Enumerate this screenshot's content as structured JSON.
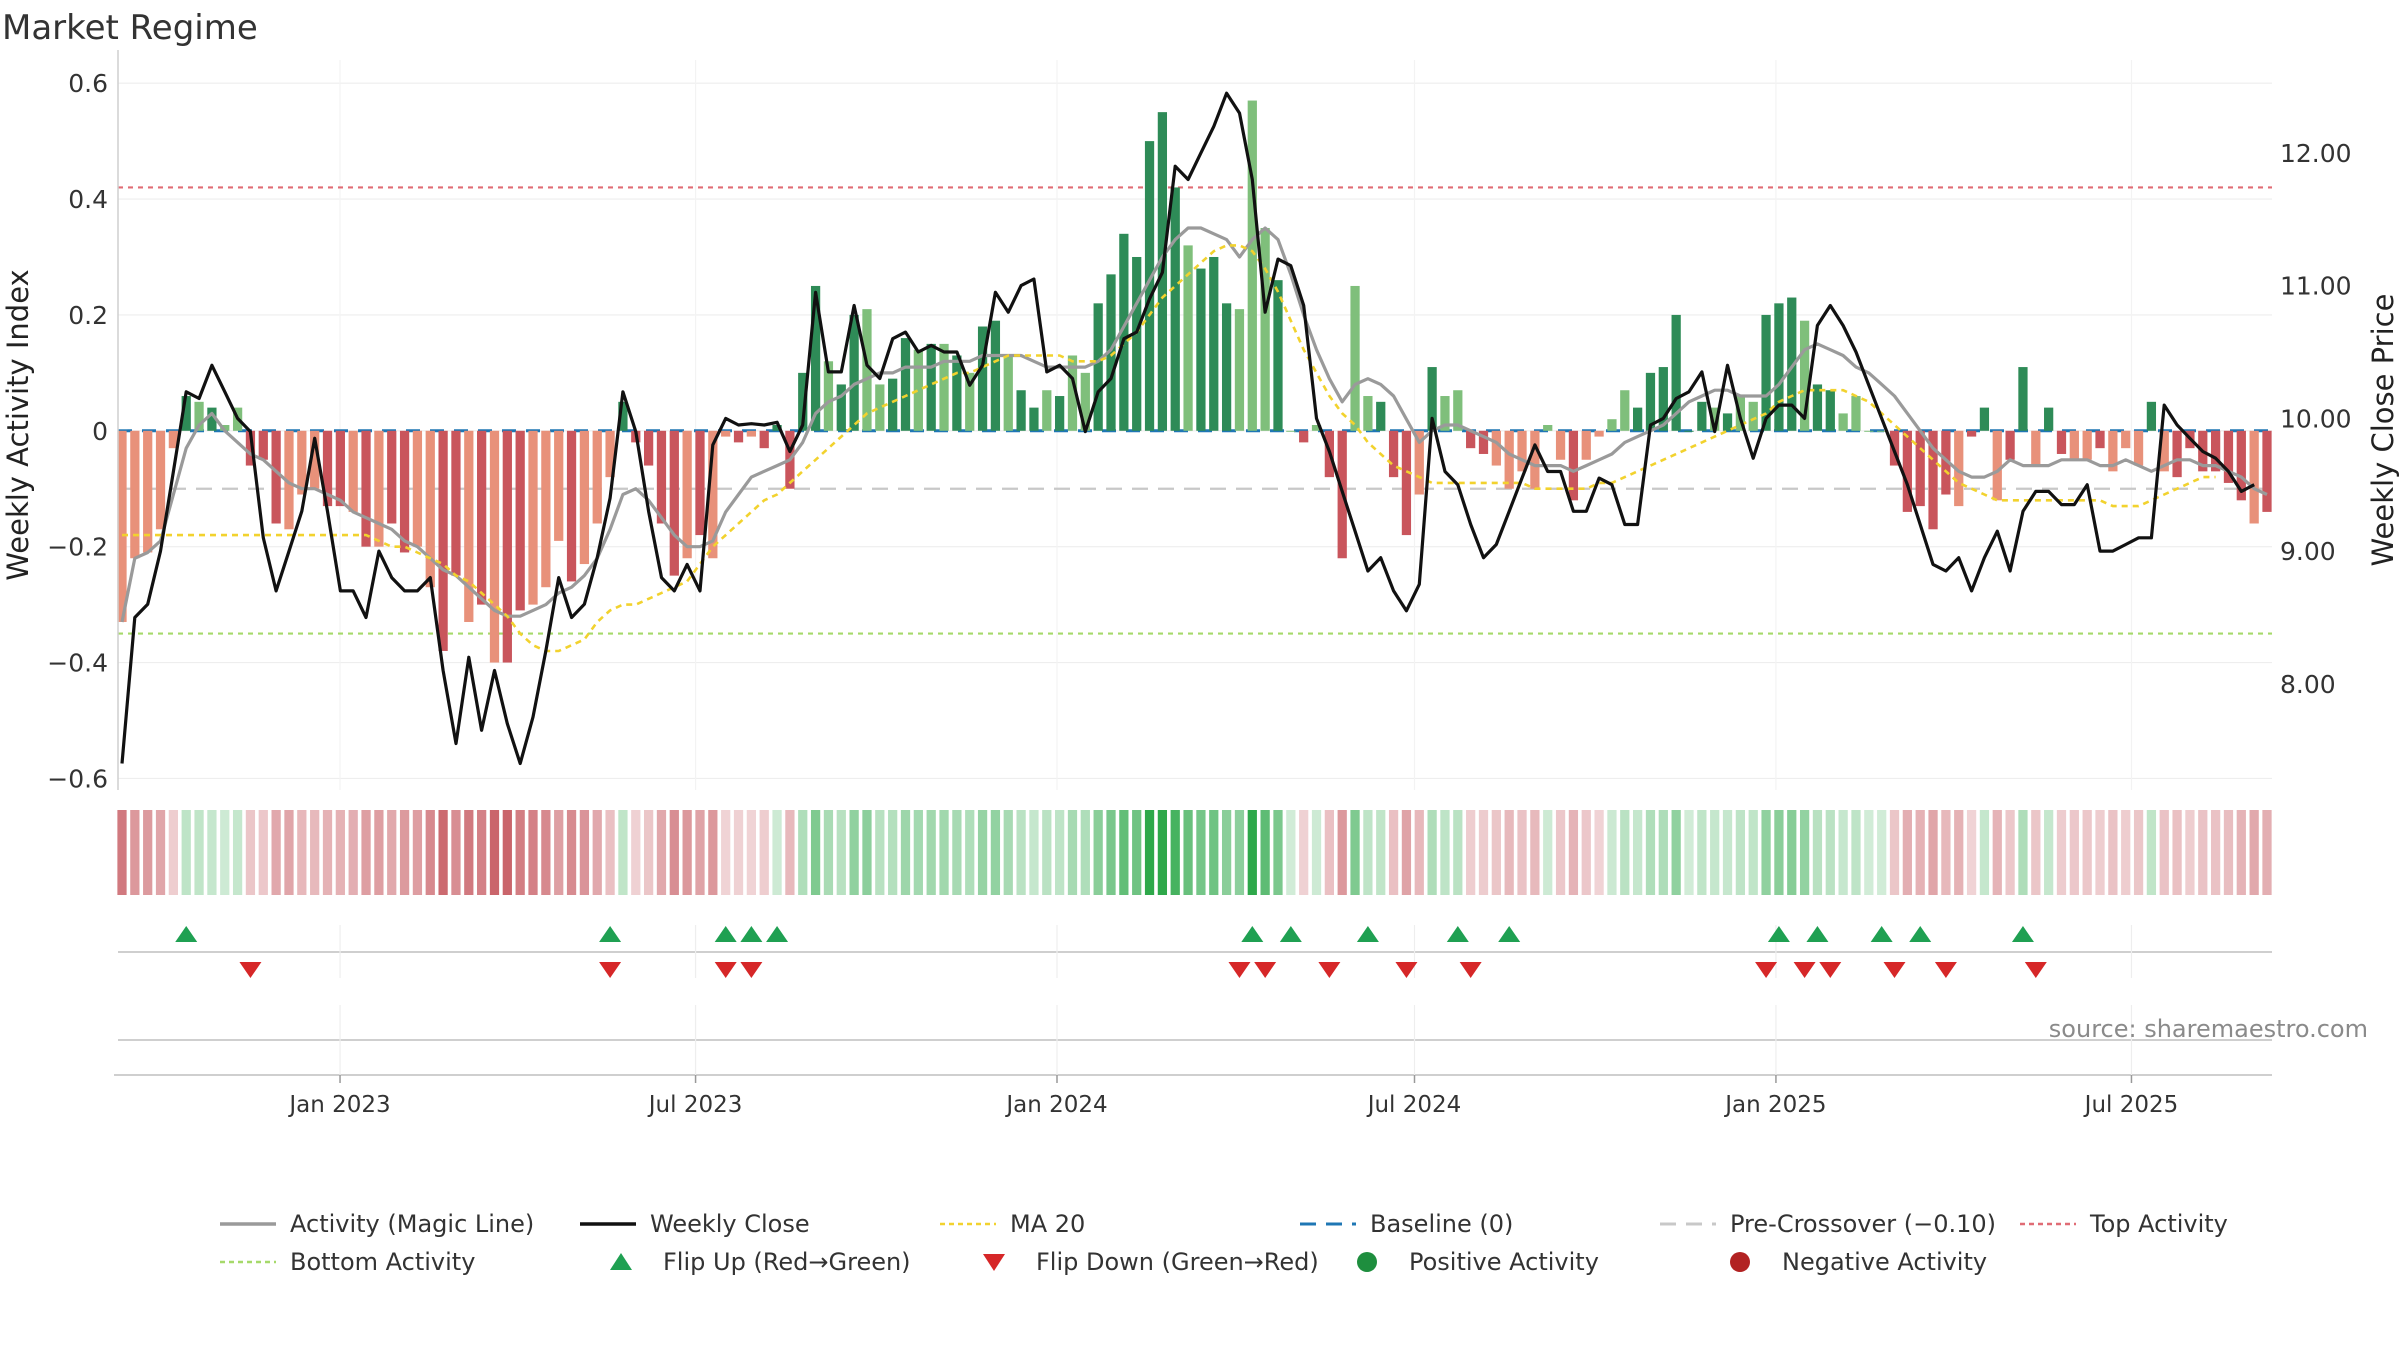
{
  "title": "Market Regime",
  "source": "source: sharemaestro.com",
  "chart_data": {
    "type": "bar",
    "title": "Market Regime",
    "ylabel_left": "Weekly Activity Index",
    "ylabel_right": "Weekly Close Price",
    "ylim_left": [
      -0.62,
      0.64
    ],
    "ylim_right": [
      7.2,
      12.7
    ],
    "yticks_left": [
      0.6,
      0.4,
      0.2,
      0,
      -0.2,
      -0.4,
      -0.6
    ],
    "ytick_labels_left": [
      "0.6",
      "0.4",
      "0.2",
      "0",
      "−0.2",
      "−0.4",
      "−0.6"
    ],
    "yticks_right": [
      12,
      11,
      10,
      9,
      8
    ],
    "ytick_labels_right": [
      "12.00",
      "11.00",
      "10.00",
      "9.00",
      "8.00"
    ],
    "x_start": "2022-09-12",
    "x_end": "2025-09-08",
    "xticks": [
      {
        "date": "2023-01-01",
        "label": "Jan 2023"
      },
      {
        "date": "2023-07-01",
        "label": "Jul 2023"
      },
      {
        "date": "2024-01-01",
        "label": "Jan 2024"
      },
      {
        "date": "2024-07-01",
        "label": "Jul 2024"
      },
      {
        "date": "2025-01-01",
        "label": "Jan 2025"
      },
      {
        "date": "2025-07-01",
        "label": "Jul 2025"
      }
    ],
    "reference_lines": {
      "top_activity": 0.42,
      "bottom_activity": -0.35,
      "pre_crossover": -0.1,
      "baseline": 0
    },
    "activity_bars": [
      -0.33,
      -0.22,
      -0.21,
      -0.17,
      -0.03,
      0.06,
      0.05,
      0.04,
      0.01,
      0.04,
      -0.06,
      -0.05,
      -0.16,
      -0.17,
      -0.11,
      -0.1,
      -0.13,
      -0.13,
      -0.14,
      -0.2,
      -0.2,
      -0.16,
      -0.21,
      -0.2,
      -0.27,
      -0.38,
      -0.25,
      -0.33,
      -0.3,
      -0.4,
      -0.4,
      -0.31,
      -0.3,
      -0.27,
      -0.19,
      -0.26,
      -0.23,
      -0.16,
      -0.08,
      0.05,
      -0.02,
      -0.06,
      -0.16,
      -0.25,
      -0.22,
      -0.18,
      -0.22,
      -0.01,
      -0.02,
      -0.01,
      -0.03,
      0.01,
      -0.1,
      0.1,
      0.25,
      0.12,
      0.08,
      0.2,
      0.21,
      0.08,
      0.09,
      0.16,
      0.14,
      0.15,
      0.15,
      0.13,
      0.1,
      0.18,
      0.19,
      0.13,
      0.07,
      0.04,
      0.07,
      0.06,
      0.13,
      0.1,
      0.22,
      0.27,
      0.34,
      0.3,
      0.5,
      0.55,
      0.42,
      0.32,
      0.28,
      0.3,
      0.22,
      0.21,
      0.57,
      0.35,
      0.26,
      0.0,
      -0.02,
      0.01,
      -0.08,
      -0.22,
      0.25,
      0.06,
      0.05,
      -0.08,
      -0.18,
      -0.11,
      0.11,
      0.06,
      0.07,
      -0.03,
      -0.04,
      -0.06,
      -0.1,
      -0.07,
      -0.1,
      0.01,
      -0.05,
      -0.12,
      -0.05,
      -0.01,
      0.02,
      0.07,
      0.04,
      0.1,
      0.11,
      0.2,
      0.0,
      0.05,
      0.04,
      0.03,
      0.06,
      0.05,
      0.2,
      0.22,
      0.23,
      0.19,
      0.08,
      0.07,
      0.03,
      0.06,
      0.0,
      0.0,
      -0.06,
      -0.14,
      -0.13,
      -0.17,
      -0.11,
      -0.13,
      -0.01,
      0.04,
      -0.12,
      -0.05,
      0.11,
      -0.06,
      0.04,
      -0.04,
      -0.05,
      -0.05,
      -0.03,
      -0.07,
      -0.03,
      -0.06,
      0.05,
      -0.07,
      -0.08,
      -0.03,
      -0.07,
      -0.07,
      -0.09,
      -0.12,
      -0.16,
      -0.14
    ],
    "weekly_close": [
      7.4,
      8.5,
      8.6,
      9.0,
      9.6,
      10.2,
      10.15,
      10.4,
      10.2,
      10.0,
      9.9,
      9.1,
      8.7,
      9.0,
      9.3,
      9.85,
      9.3,
      8.7,
      8.7,
      8.5,
      9.0,
      8.8,
      8.7,
      8.7,
      8.8,
      8.1,
      7.55,
      8.2,
      7.65,
      8.1,
      7.7,
      7.4,
      7.75,
      8.25,
      8.8,
      8.5,
      8.6,
      8.95,
      9.4,
      10.2,
      9.9,
      9.3,
      8.8,
      8.7,
      8.9,
      8.7,
      9.8,
      10.0,
      9.95,
      9.96,
      9.95,
      9.97,
      9.75,
      9.95,
      10.95,
      10.35,
      10.35,
      10.85,
      10.4,
      10.3,
      10.6,
      10.65,
      10.5,
      10.55,
      10.5,
      10.5,
      10.25,
      10.4,
      10.95,
      10.8,
      11.0,
      11.05,
      10.35,
      10.4,
      10.3,
      9.9,
      10.2,
      10.3,
      10.6,
      10.65,
      10.9,
      11.1,
      11.9,
      11.8,
      12.0,
      12.2,
      12.45,
      12.3,
      11.8,
      10.8,
      11.2,
      11.15,
      10.85,
      10.0,
      9.75,
      9.45,
      9.15,
      8.85,
      8.95,
      8.7,
      8.55,
      8.75,
      10.0,
      9.6,
      9.5,
      9.2,
      8.95,
      9.05,
      9.3,
      9.55,
      9.8,
      9.6,
      9.6,
      9.3,
      9.3,
      9.55,
      9.5,
      9.2,
      9.2,
      9.95,
      10.0,
      10.15,
      10.2,
      10.35,
      9.9,
      10.4,
      10.0,
      9.7,
      10.0,
      10.1,
      10.1,
      10.0,
      10.7,
      10.85,
      10.7,
      10.5,
      10.25,
      10.0,
      9.75,
      9.5,
      9.2,
      8.9,
      8.85,
      8.95,
      8.7,
      8.95,
      9.15,
      8.85,
      9.3,
      9.45,
      9.45,
      9.35,
      9.35,
      9.5,
      9.0,
      9.0,
      9.05,
      9.1,
      9.1,
      10.1,
      9.95,
      9.85,
      9.75,
      9.7,
      9.6,
      9.45,
      9.5
    ],
    "magic_line": [
      -0.33,
      -0.22,
      -0.21,
      -0.19,
      -0.11,
      -0.03,
      0.01,
      0.03,
      0.0,
      -0.02,
      -0.04,
      -0.05,
      -0.07,
      -0.09,
      -0.1,
      -0.1,
      -0.11,
      -0.12,
      -0.14,
      -0.15,
      -0.16,
      -0.17,
      -0.19,
      -0.2,
      -0.22,
      -0.24,
      -0.25,
      -0.27,
      -0.29,
      -0.31,
      -0.32,
      -0.32,
      -0.31,
      -0.3,
      -0.28,
      -0.27,
      -0.25,
      -0.22,
      -0.17,
      -0.11,
      -0.1,
      -0.12,
      -0.15,
      -0.18,
      -0.2,
      -0.2,
      -0.19,
      -0.14,
      -0.11,
      -0.08,
      -0.07,
      -0.06,
      -0.05,
      -0.02,
      0.03,
      0.05,
      0.06,
      0.08,
      0.09,
      0.1,
      0.1,
      0.11,
      0.11,
      0.11,
      0.12,
      0.12,
      0.12,
      0.13,
      0.13,
      0.13,
      0.13,
      0.12,
      0.11,
      0.11,
      0.11,
      0.11,
      0.12,
      0.14,
      0.18,
      0.22,
      0.26,
      0.3,
      0.33,
      0.35,
      0.35,
      0.34,
      0.33,
      0.3,
      0.33,
      0.35,
      0.33,
      0.27,
      0.2,
      0.14,
      0.09,
      0.05,
      0.08,
      0.09,
      0.08,
      0.06,
      0.02,
      -0.02,
      0.0,
      0.01,
      0.01,
      0.0,
      -0.01,
      -0.02,
      -0.04,
      -0.05,
      -0.06,
      -0.06,
      -0.06,
      -0.07,
      -0.06,
      -0.05,
      -0.04,
      -0.02,
      -0.01,
      0.0,
      0.01,
      0.03,
      0.05,
      0.06,
      0.07,
      0.07,
      0.06,
      0.06,
      0.06,
      0.08,
      0.11,
      0.14,
      0.15,
      0.14,
      0.13,
      0.11,
      0.1,
      0.08,
      0.06,
      0.03,
      0.0,
      -0.03,
      -0.05,
      -0.07,
      -0.08,
      -0.08,
      -0.07,
      -0.05,
      -0.06,
      -0.06,
      -0.06,
      -0.05,
      -0.05,
      -0.05,
      -0.06,
      -0.06,
      -0.05,
      -0.06,
      -0.07,
      -0.06,
      -0.05,
      -0.05,
      -0.06,
      -0.06,
      -0.07,
      -0.08,
      -0.1,
      -0.11
    ],
    "ma20": [
      -0.18,
      -0.18,
      -0.18,
      -0.18,
      -0.18,
      -0.18,
      -0.18,
      -0.18,
      -0.18,
      -0.18,
      -0.18,
      -0.18,
      -0.18,
      -0.18,
      -0.18,
      -0.18,
      -0.18,
      -0.18,
      -0.18,
      -0.18,
      -0.19,
      -0.2,
      -0.2,
      -0.21,
      -0.22,
      -0.23,
      -0.25,
      -0.26,
      -0.28,
      -0.3,
      -0.32,
      -0.35,
      -0.37,
      -0.38,
      -0.38,
      -0.37,
      -0.36,
      -0.33,
      -0.31,
      -0.3,
      -0.3,
      -0.29,
      -0.28,
      -0.27,
      -0.26,
      -0.23,
      -0.2,
      -0.18,
      -0.16,
      -0.14,
      -0.12,
      -0.11,
      -0.09,
      -0.07,
      -0.05,
      -0.03,
      -0.01,
      0.01,
      0.03,
      0.04,
      0.05,
      0.06,
      0.07,
      0.08,
      0.09,
      0.1,
      0.1,
      0.11,
      0.12,
      0.13,
      0.13,
      0.13,
      0.13,
      0.13,
      0.12,
      0.12,
      0.12,
      0.13,
      0.15,
      0.17,
      0.2,
      0.23,
      0.25,
      0.27,
      0.29,
      0.31,
      0.32,
      0.32,
      0.31,
      0.28,
      0.24,
      0.19,
      0.14,
      0.1,
      0.06,
      0.03,
      0.01,
      -0.02,
      -0.04,
      -0.06,
      -0.07,
      -0.08,
      -0.09,
      -0.09,
      -0.09,
      -0.09,
      -0.09,
      -0.09,
      -0.09,
      -0.09,
      -0.1,
      -0.1,
      -0.1,
      -0.1,
      -0.1,
      -0.09,
      -0.09,
      -0.08,
      -0.07,
      -0.06,
      -0.05,
      -0.04,
      -0.03,
      -0.02,
      -0.01,
      0.0,
      0.01,
      0.02,
      0.03,
      0.05,
      0.06,
      0.07,
      0.07,
      0.07,
      0.07,
      0.06,
      0.05,
      0.03,
      0.01,
      -0.01,
      -0.03,
      -0.05,
      -0.07,
      -0.09,
      -0.1,
      -0.11,
      -0.12,
      -0.12,
      -0.12,
      -0.12,
      -0.12,
      -0.12,
      -0.12,
      -0.12,
      -0.12,
      -0.13,
      -0.13,
      -0.13,
      -0.12,
      -0.11,
      -0.1,
      -0.09,
      -0.08,
      -0.08
    ],
    "flip_up_weeks": [
      5,
      38,
      47,
      49,
      51,
      88,
      91,
      97,
      104,
      108,
      129,
      132,
      137,
      140,
      148
    ],
    "flip_down_weeks": [
      10,
      38,
      47,
      49,
      87,
      89,
      94,
      100,
      105,
      128,
      131,
      133,
      138,
      142,
      149
    ],
    "colors": {
      "pos_strong": "#2e8b57",
      "pos_light": "#7fbf7b",
      "neg_strong": "#c9555c",
      "neg_light": "#e8917a",
      "weekly_close": "#111111",
      "magic_line": "#9a9a9a",
      "ma20": "#f2d22e",
      "baseline": "#1f77b4",
      "pre_crossover": "#c8c8c8",
      "top_activity": "#e06c75",
      "bottom_activity": "#a6d96a",
      "flip_up": "#1fa052",
      "flip_down": "#d62728",
      "positive_dot": "#1e8e3e",
      "negative_dot": "#b22222"
    }
  },
  "legend": [
    {
      "label": "Activity (Magic Line)",
      "style": "line",
      "color": "#9a9a9a"
    },
    {
      "label": "Weekly Close",
      "style": "line",
      "color": "#111111"
    },
    {
      "label": "MA 20",
      "style": "dotted",
      "color": "#f2d22e"
    },
    {
      "label": "Baseline (0)",
      "style": "dashed",
      "color": "#1f77b4"
    },
    {
      "label": "Pre-Crossover (−0.10)",
      "style": "dashed",
      "color": "#c8c8c8"
    },
    {
      "label": "Top Activity",
      "style": "dotted",
      "color": "#e06c75"
    },
    {
      "label": "Bottom Activity",
      "style": "dotted",
      "color": "#a6d96a"
    },
    {
      "label": "Flip Up (Red→Green)",
      "style": "triangle-up",
      "color": "#1fa052"
    },
    {
      "label": "Flip Down (Green→Red)",
      "style": "triangle-down",
      "color": "#d62728"
    },
    {
      "label": "Positive Activity",
      "style": "dot",
      "color": "#1e8e3e"
    },
    {
      "label": "Negative Activity",
      "style": "dot",
      "color": "#b22222"
    }
  ]
}
